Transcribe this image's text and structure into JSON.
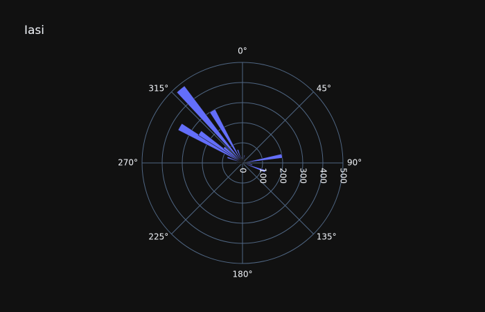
{
  "title": "Iasi",
  "colors": {
    "background": "#111111",
    "grid": "#506784",
    "bar": "#636efa",
    "bar_edge": "#1a1a1a",
    "text": "#f2f5fa"
  },
  "chart_data": {
    "type": "barpolar",
    "title": "Iasi",
    "radial_axis": {
      "range": [
        0,
        500
      ],
      "tick_values": [
        0,
        100,
        200,
        300,
        400,
        500
      ],
      "tick_labels": [
        "0",
        "100",
        "200",
        "300",
        "400",
        "500"
      ],
      "tick_angle": 90
    },
    "angular_axis": {
      "direction": "clockwise",
      "rotation": 90,
      "tick_values": [
        0,
        45,
        90,
        135,
        180,
        225,
        270,
        315
      ],
      "tick_labels": [
        "0°",
        "45°",
        "90°",
        "135°",
        "180°",
        "225°",
        "270°",
        "315°"
      ]
    },
    "bar_width_deg": 6,
    "bars": [
      {
        "theta": 5,
        "r": 18
      },
      {
        "theta": 15,
        "r": 40
      },
      {
        "theta": 20,
        "r": 12
      },
      {
        "theta": 30,
        "r": 25
      },
      {
        "theta": 40,
        "r": 10
      },
      {
        "theta": 60,
        "r": 12
      },
      {
        "theta": 70,
        "r": 15
      },
      {
        "theta": 80,
        "r": 200
      },
      {
        "theta": 90,
        "r": 40
      },
      {
        "theta": 100,
        "r": 50
      },
      {
        "theta": 110,
        "r": 120
      },
      {
        "theta": 120,
        "r": 15
      },
      {
        "theta": 130,
        "r": 8
      },
      {
        "theta": 200,
        "r": 8
      },
      {
        "theta": 230,
        "r": 10
      },
      {
        "theta": 240,
        "r": 10
      },
      {
        "theta": 255,
        "r": 20
      },
      {
        "theta": 265,
        "r": 30
      },
      {
        "theta": 290,
        "r": 80
      },
      {
        "theta": 300,
        "r": 360
      },
      {
        "theta": 305,
        "r": 260
      },
      {
        "theta": 310,
        "r": 120
      },
      {
        "theta": 320,
        "r": 480
      },
      {
        "theta": 330,
        "r": 300
      },
      {
        "theta": 340,
        "r": 70
      },
      {
        "theta": 350,
        "r": 30
      }
    ]
  }
}
